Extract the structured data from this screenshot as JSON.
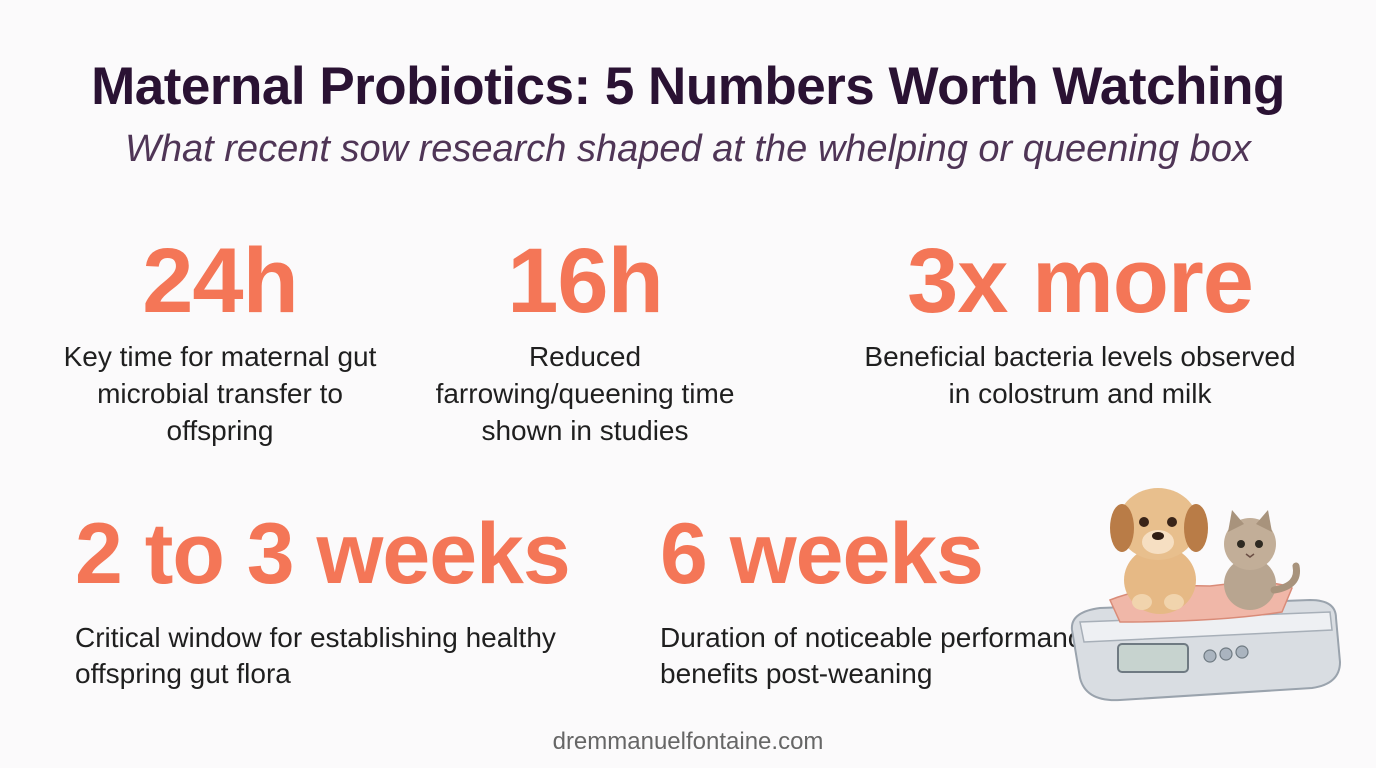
{
  "header": {
    "title": "Maternal Probiotics: 5 Numbers Worth Watching",
    "subtitle": "What recent sow research shaped at the whelping or queening box"
  },
  "stats": [
    {
      "value": "24h",
      "description": "Key time for maternal gut microbial transfer to offspring"
    },
    {
      "value": "16h",
      "description": "Reduced farrowing/queening time shown in studies"
    },
    {
      "value": "3x more",
      "description": "Beneficial bacteria levels observed in colostrum and milk"
    },
    {
      "value": "2 to 3 weeks",
      "description": "Critical window for establishing healthy offspring gut flora"
    },
    {
      "value": "6 weeks",
      "description": "Duration of noticeable performance benefits post-weaning"
    }
  ],
  "footer": {
    "website": "dremmanuelfontaine.com"
  },
  "colors": {
    "accent": "#f47657",
    "title": "#2a1233",
    "subtitle": "#4f3556",
    "text": "#1f1f1f"
  },
  "illustration": {
    "icon": "puppy-kitten-on-scale-icon"
  }
}
